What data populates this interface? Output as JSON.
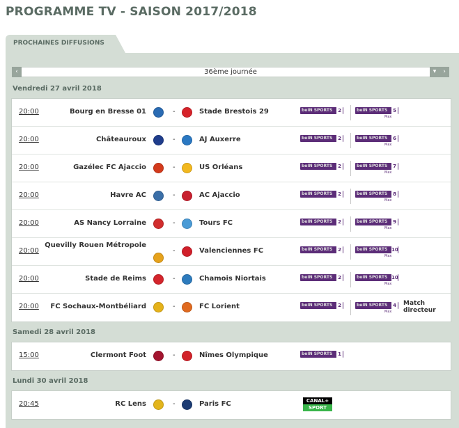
{
  "page_title": "PROGRAMME TV - SAISON 2017/2018",
  "tab_label": "PROCHAINES DIFFUSIONS",
  "round": {
    "label": "36ème journée",
    "prev_glyph": "‹",
    "dropdown_glyph": "▾",
    "next_glyph": "›"
  },
  "days": [
    {
      "title": "Vendredi 27 avril 2018",
      "matches": [
        {
          "time": "20:00",
          "home": "Bourg en Bresse 01",
          "away": "Stade Brestois 29",
          "tv": [
            "bein-sports-2",
            "bein-sports-5-max"
          ],
          "tv1_num": "2",
          "tv2_num": "5",
          "note": ""
        },
        {
          "time": "20:00",
          "home": "Châteauroux",
          "away": "AJ Auxerre",
          "tv": [
            "bein-sports-2",
            "bein-sports-6-max"
          ],
          "tv1_num": "2",
          "tv2_num": "6",
          "note": ""
        },
        {
          "time": "20:00",
          "home": "Gazélec FC Ajaccio",
          "away": "US Orléans",
          "tv": [
            "bein-sports-2",
            "bein-sports-7-max"
          ],
          "tv1_num": "2",
          "tv2_num": "7",
          "note": ""
        },
        {
          "time": "20:00",
          "home": "Havre AC",
          "away": "AC Ajaccio",
          "tv": [
            "bein-sports-2",
            "bein-sports-8-max"
          ],
          "tv1_num": "2",
          "tv2_num": "8",
          "note": ""
        },
        {
          "time": "20:00",
          "home": "AS Nancy Lorraine",
          "away": "Tours FC",
          "tv": [
            "bein-sports-2",
            "bein-sports-9-max"
          ],
          "tv1_num": "2",
          "tv2_num": "9",
          "note": ""
        },
        {
          "time": "20:00",
          "home": "Quevilly Rouen Métropole",
          "away": "Valenciennes FC",
          "tv": [
            "bein-sports-2",
            "bein-sports-10-max"
          ],
          "tv1_num": "2",
          "tv2_num": "10",
          "note": ""
        },
        {
          "time": "20:00",
          "home": "Stade de Reims",
          "away": "Chamois Niortais",
          "tv": [
            "bein-sports-2",
            "bein-sports-10-max"
          ],
          "tv1_num": "2",
          "tv2_num": "10",
          "note": ""
        },
        {
          "time": "20:00",
          "home": "FC Sochaux-Montbéliard",
          "away": "FC Lorient",
          "tv": [
            "bein-sports-2",
            "bein-sports-4-max"
          ],
          "tv1_num": "2",
          "tv2_num": "4",
          "note_line1": "Match",
          "note_line2": "directeur"
        }
      ]
    },
    {
      "title": "Samedi 28 avril 2018",
      "matches": [
        {
          "time": "15:00",
          "home": "Clermont Foot",
          "away": "Nîmes Olympique",
          "tv": [
            "bein-sports-1"
          ],
          "tv1_num": "1"
        }
      ]
    },
    {
      "title": "Lundi 30 avril 2018",
      "matches": [
        {
          "time": "20:45",
          "home": "RC Lens",
          "away": "Paris FC",
          "tv": [
            "canal-plus-sport"
          ]
        }
      ]
    }
  ],
  "logos": {
    "bein_text": "beIN SPORTS",
    "max_text": "Max",
    "canal_top": "CANAL+",
    "canal_bottom": "SPORT"
  },
  "colors": {
    "title": "#5a6b63",
    "panel": "#d4ddd5",
    "bein": "#5c2d78",
    "canal_green": "#39b54a"
  },
  "crest_colors": {
    "Bourg en Bresse 01": "#2a6bb3",
    "Stade Brestois 29": "#d6232a",
    "Châteauroux": "#1f3d8c",
    "AJ Auxerre": "#2b78c2",
    "Gazélec FC Ajaccio": "#d33a1c",
    "US Orléans": "#f2b81f",
    "Havre AC": "#3b6fa8",
    "AC Ajaccio": "#c8202f",
    "AS Nancy Lorraine": "#d12d2d",
    "Tours FC": "#4a9bd6",
    "Quevilly Rouen Métropole": "#e6a21c",
    "Valenciennes FC": "#d11f2a",
    "Stade de Reims": "#d4252c",
    "Chamois Niortais": "#2d7bbd",
    "FC Sochaux-Montbéliard": "#e5b21a",
    "FC Lorient": "#e06a1f",
    "Clermont Foot": "#a3142f",
    "Nîmes Olympique": "#d2232a",
    "RC Lens": "#e3b51c",
    "Paris FC": "#1c3b73"
  }
}
